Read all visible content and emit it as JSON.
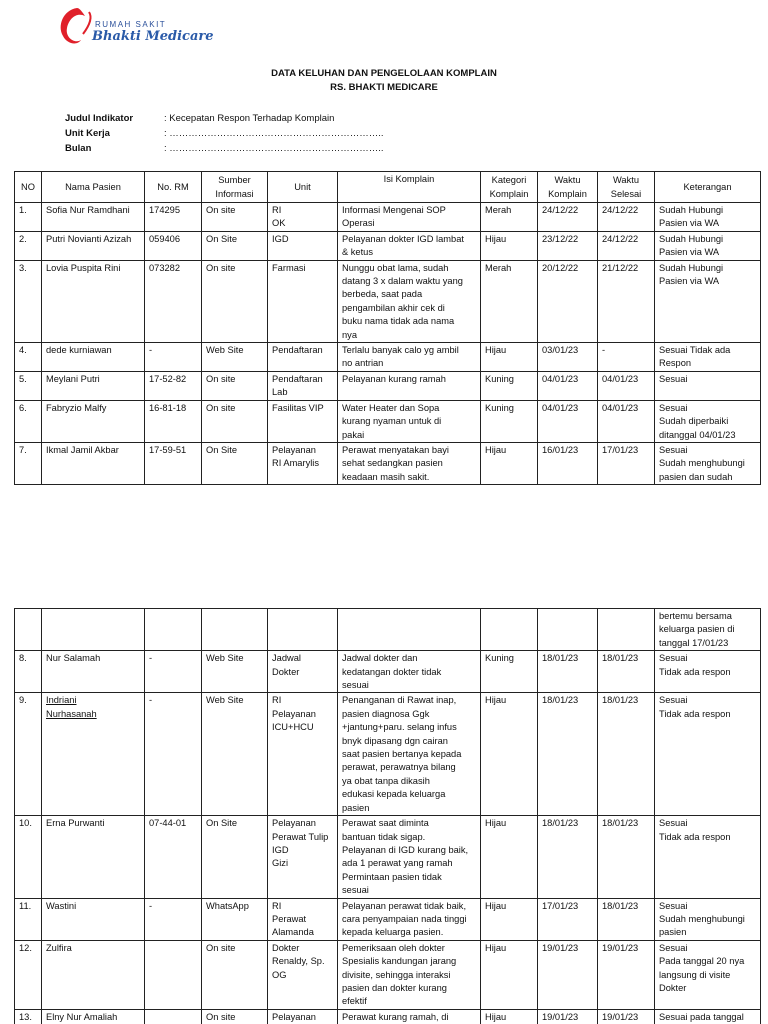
{
  "logo": {
    "line1": "RUMAH SAKIT",
    "line2": "Bhakti Medicare",
    "color": "#e0202a"
  },
  "title": {
    "line1": "DATA KELUHAN DAN PENGELOLAAN KOMPLAIN",
    "line2": "RS. BHAKTI MEDICARE"
  },
  "meta": [
    {
      "label": "Judul Indikator",
      "value": ": Kecepatan Respon Terhadap Komplain"
    },
    {
      "label": "Unit Kerja",
      "value": ": ………………………………………………………….."
    },
    {
      "label": "Bulan",
      "value": ": ………………………………………………………….."
    }
  ],
  "columns": [
    "NO",
    "Nama Pasien",
    "No. RM",
    "Sumber\nInformasi",
    "Unit",
    "Isi Komplain",
    "Kategori\nKomplain",
    "Waktu\nKomplain",
    "Waktu\nSelesai",
    "Keterangan"
  ],
  "table1": [
    [
      "1.",
      "Sofia Nur Ramdhani",
      "174295",
      "On site",
      "RI\nOK",
      "Informasi Mengenai SOP\nOperasi",
      "Merah",
      "24/12/22",
      "24/12/22",
      "Sudah Hubungi\nPasien via WA"
    ],
    [
      "2.",
      "Putri Novianti Azizah",
      "059406",
      "On Site",
      "IGD",
      "Pelayanan dokter IGD lambat\n& ketus",
      "Hijau",
      "23/12/22",
      "24/12/22",
      "Sudah Hubungi\nPasien via WA"
    ],
    [
      "3.",
      "Lovia Puspita Rini",
      "073282",
      "On site",
      "Farmasi",
      "Nunggu obat lama, sudah\ndatang 3 x dalam waktu yang\nberbeda, saat pada\npengambilan akhir cek di\nbuku nama tidak ada nama\nnya",
      "Merah",
      "20/12/22",
      "21/12/22",
      "Sudah Hubungi\nPasien via WA"
    ],
    [
      "4.",
      "dede kurniawan",
      "-",
      "Web Site",
      "Pendaftaran",
      "Terlalu banyak calo yg ambil\nno antrian",
      "Hijau",
      "03/01/23",
      "-",
      "Sesuai Tidak ada\nRespon"
    ],
    [
      "5.",
      "Meylani Putri",
      "17-52-82",
      "On site",
      "Pendaftaran\nLab",
      "Pelayanan kurang ramah",
      "Kuning",
      "04/01/23",
      "04/01/23",
      "Sesuai"
    ],
    [
      "6.",
      "Fabryzio Malfy",
      "16-81-18",
      "On site",
      "Fasilitas VIP",
      "Water Heater dan Sopa\nkurang nyaman untuk di\npakai",
      "Kuning",
      "04/01/23",
      "04/01/23",
      "Sesuai\nSudah diperbaiki\nditanggal 04/01/23"
    ],
    [
      "7.",
      "Ikmal Jamil Akbar",
      "17-59-51",
      "On Site",
      "Pelayanan\nRI Amarylis",
      "Perawat menyatakan bayi\nsehat sedangkan pasien\nkeadaan masih sakit.",
      "Hijau",
      "16/01/23",
      "17/01/23",
      "Sesuai\nSudah menghubungi\npasien dan sudah"
    ]
  ],
  "table2": [
    [
      "",
      "",
      "",
      "",
      "",
      "",
      "",
      "",
      "",
      "bertemu bersama\nkeluarga pasien di\ntanggal 17/01/23"
    ],
    [
      "8.",
      "Nur Salamah",
      "-",
      "Web Site",
      "Jadwal\nDokter",
      "Jadwal dokter dan\nkedatangan dokter tidak\nsesuai",
      "Kuning",
      "18/01/23",
      "18/01/23",
      "Sesuai\nTidak ada respon"
    ],
    [
      "9.",
      "Indriani\nNurhasanah",
      "-",
      "Web Site",
      "RI\nPelayanan\nICU+HCU",
      "Penanganan di Rawat inap,\npasien diagnosa Ggk\n+jantung+paru. selang infus\nbnyk dipasang dgn cairan\nsaat pasien bertanya kepada\nperawat, perawatnya bilang\nya obat tanpa dikasih\nedukasi kepada keluarga\npasien",
      "Hijau",
      "18/01/23",
      "18/01/23",
      "Sesuai\nTidak ada respon"
    ],
    [
      "10.",
      "Erna Purwanti",
      "07-44-01",
      "On Site",
      "Pelayanan\nPerawat Tulip\nIGD\nGizi",
      "Perawat saat diminta\nbantuan tidak sigap.\nPelayanan di IGD kurang baik,\nada 1 perawat yang ramah\nPermintaan pasien tidak\nsesuai",
      "Hijau",
      "18/01/23",
      "18/01/23",
      "Sesuai\nTidak ada respon"
    ],
    [
      "11.",
      "Wastini",
      "-",
      "WhatsApp",
      "RI\nPerawat\nAlamanda",
      "Pelayanan perawat tidak baik,\ncara penyampaian nada tinggi\nkepada keluarga pasien.",
      "Hijau",
      "17/01/23",
      "18/01/23",
      "Sesuai\nSudah menghubungi\npasien"
    ],
    [
      "12.",
      "Zulfira",
      "",
      "On site",
      "Dokter\nRenaldy, Sp.\nOG",
      "Pemeriksaan oleh dokter\nSpesialis kandungan jarang\ndivisite,  sehingga interaksi\npasien dan dokter kurang\nefektif",
      "Hijau",
      "19/01/23",
      "19/01/23",
      "Sesuai\nPada tanggal 20 nya\nlangsung di visite\nDokter"
    ],
    [
      "13.",
      "Elny Nur Amaliah",
      "",
      "On site",
      "Pelayanan",
      "Perawat kurang ramah, di",
      "Hijau",
      "19/01/23",
      "19/01/23",
      "Sesuai pada tanggal"
    ]
  ]
}
